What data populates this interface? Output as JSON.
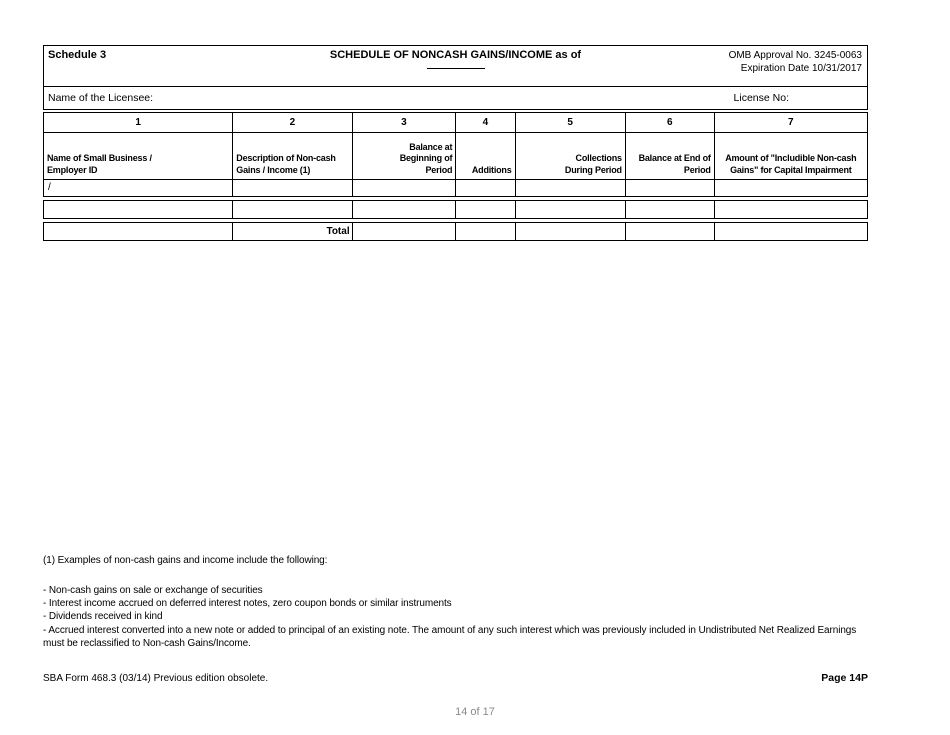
{
  "form": {
    "schedule_label": "Schedule 3",
    "title": "SCHEDULE OF NONCASH GAINS/INCOME as of",
    "omb_line1": "OMB Approval No. 3245-0063",
    "omb_line2": "Expiration Date 10/31/2017",
    "licensee_label": "Name of the Licensee:",
    "license_no_label": "License No:"
  },
  "table": {
    "column_numbers": [
      "1",
      "2",
      "3",
      "4",
      "5",
      "6",
      "7"
    ],
    "column_headers": [
      "Name of Small Business /\nEmployer ID",
      "Description of Non-cash\nGains / Income (1)",
      "Balance at\nBeginning of\nPeriod",
      "Additions",
      "Collections\nDuring Period",
      "Balance at End of\nPeriod",
      "Amount of \"Includible Non-cash\nGains\" for Capital Impairment"
    ],
    "rows": [
      {
        "cells": [
          "/",
          "",
          "",
          "",
          "",
          "",
          ""
        ]
      },
      {
        "cells": [
          "",
          "",
          "",
          "",
          "",
          "",
          ""
        ]
      },
      {
        "cells": [
          "",
          "Total",
          "",
          "",
          "",
          "",
          ""
        ]
      }
    ]
  },
  "footnotes": {
    "intro": "(1) Examples of non-cash gains and income include the following:",
    "items": [
      "- Non-cash gains on sale or exchange of securities",
      "- Interest income accrued on deferred interest notes, zero coupon bonds or similar instruments",
      "- Dividends received in kind",
      "- Accrued interest converted into a new note or added to principal of an existing note. The amount of any such interest which was previously included in Undistributed Net Realized Earnings must be reclassified to Non-cash Gains/Income."
    ]
  },
  "footer": {
    "form_id": "SBA Form 468.3 (03/14) Previous edition obsolete.",
    "page_label": "Page 14P"
  },
  "viewer": {
    "page_indicator": "14 of 17",
    "indicator_color": "#8a8a8a"
  }
}
